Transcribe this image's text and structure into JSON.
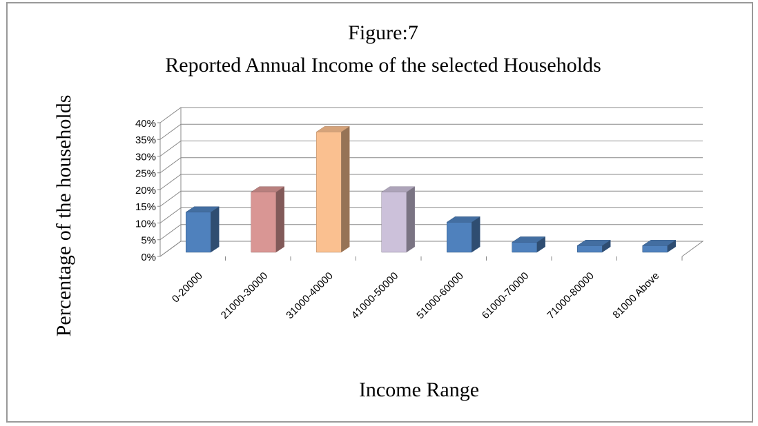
{
  "chart_data": {
    "type": "bar3d",
    "title": "Figure:7",
    "subtitle": "Reported Annual Income of the selected Households",
    "y_label": "Percentage of the households",
    "x_label": "Income Range",
    "categories": [
      "0-20000",
      "21000-30000",
      "31000-40000",
      "41000-50000",
      "51000-60000",
      "61000-70000",
      "71000-80000",
      "81000 Above"
    ],
    "values": [
      12,
      18,
      36,
      18,
      9,
      3,
      2,
      2
    ],
    "colors": [
      "#4f81bd",
      "#d99694",
      "#fac090",
      "#ccc1da",
      "#4f81bd",
      "#4f81bd",
      "#4f81bd",
      "#4f81bd"
    ],
    "ylim": [
      0,
      40
    ],
    "yticks": [
      {
        "value": 0,
        "label": "0%"
      },
      {
        "value": 5,
        "label": "5%"
      },
      {
        "value": 10,
        "label": "10%"
      },
      {
        "value": 15,
        "label": "15%"
      },
      {
        "value": 20,
        "label": "20%"
      },
      {
        "value": 25,
        "label": "25%"
      },
      {
        "value": 30,
        "label": "30%"
      },
      {
        "value": 35,
        "label": "35%"
      },
      {
        "value": 40,
        "label": "40%"
      }
    ],
    "grid": true
  }
}
